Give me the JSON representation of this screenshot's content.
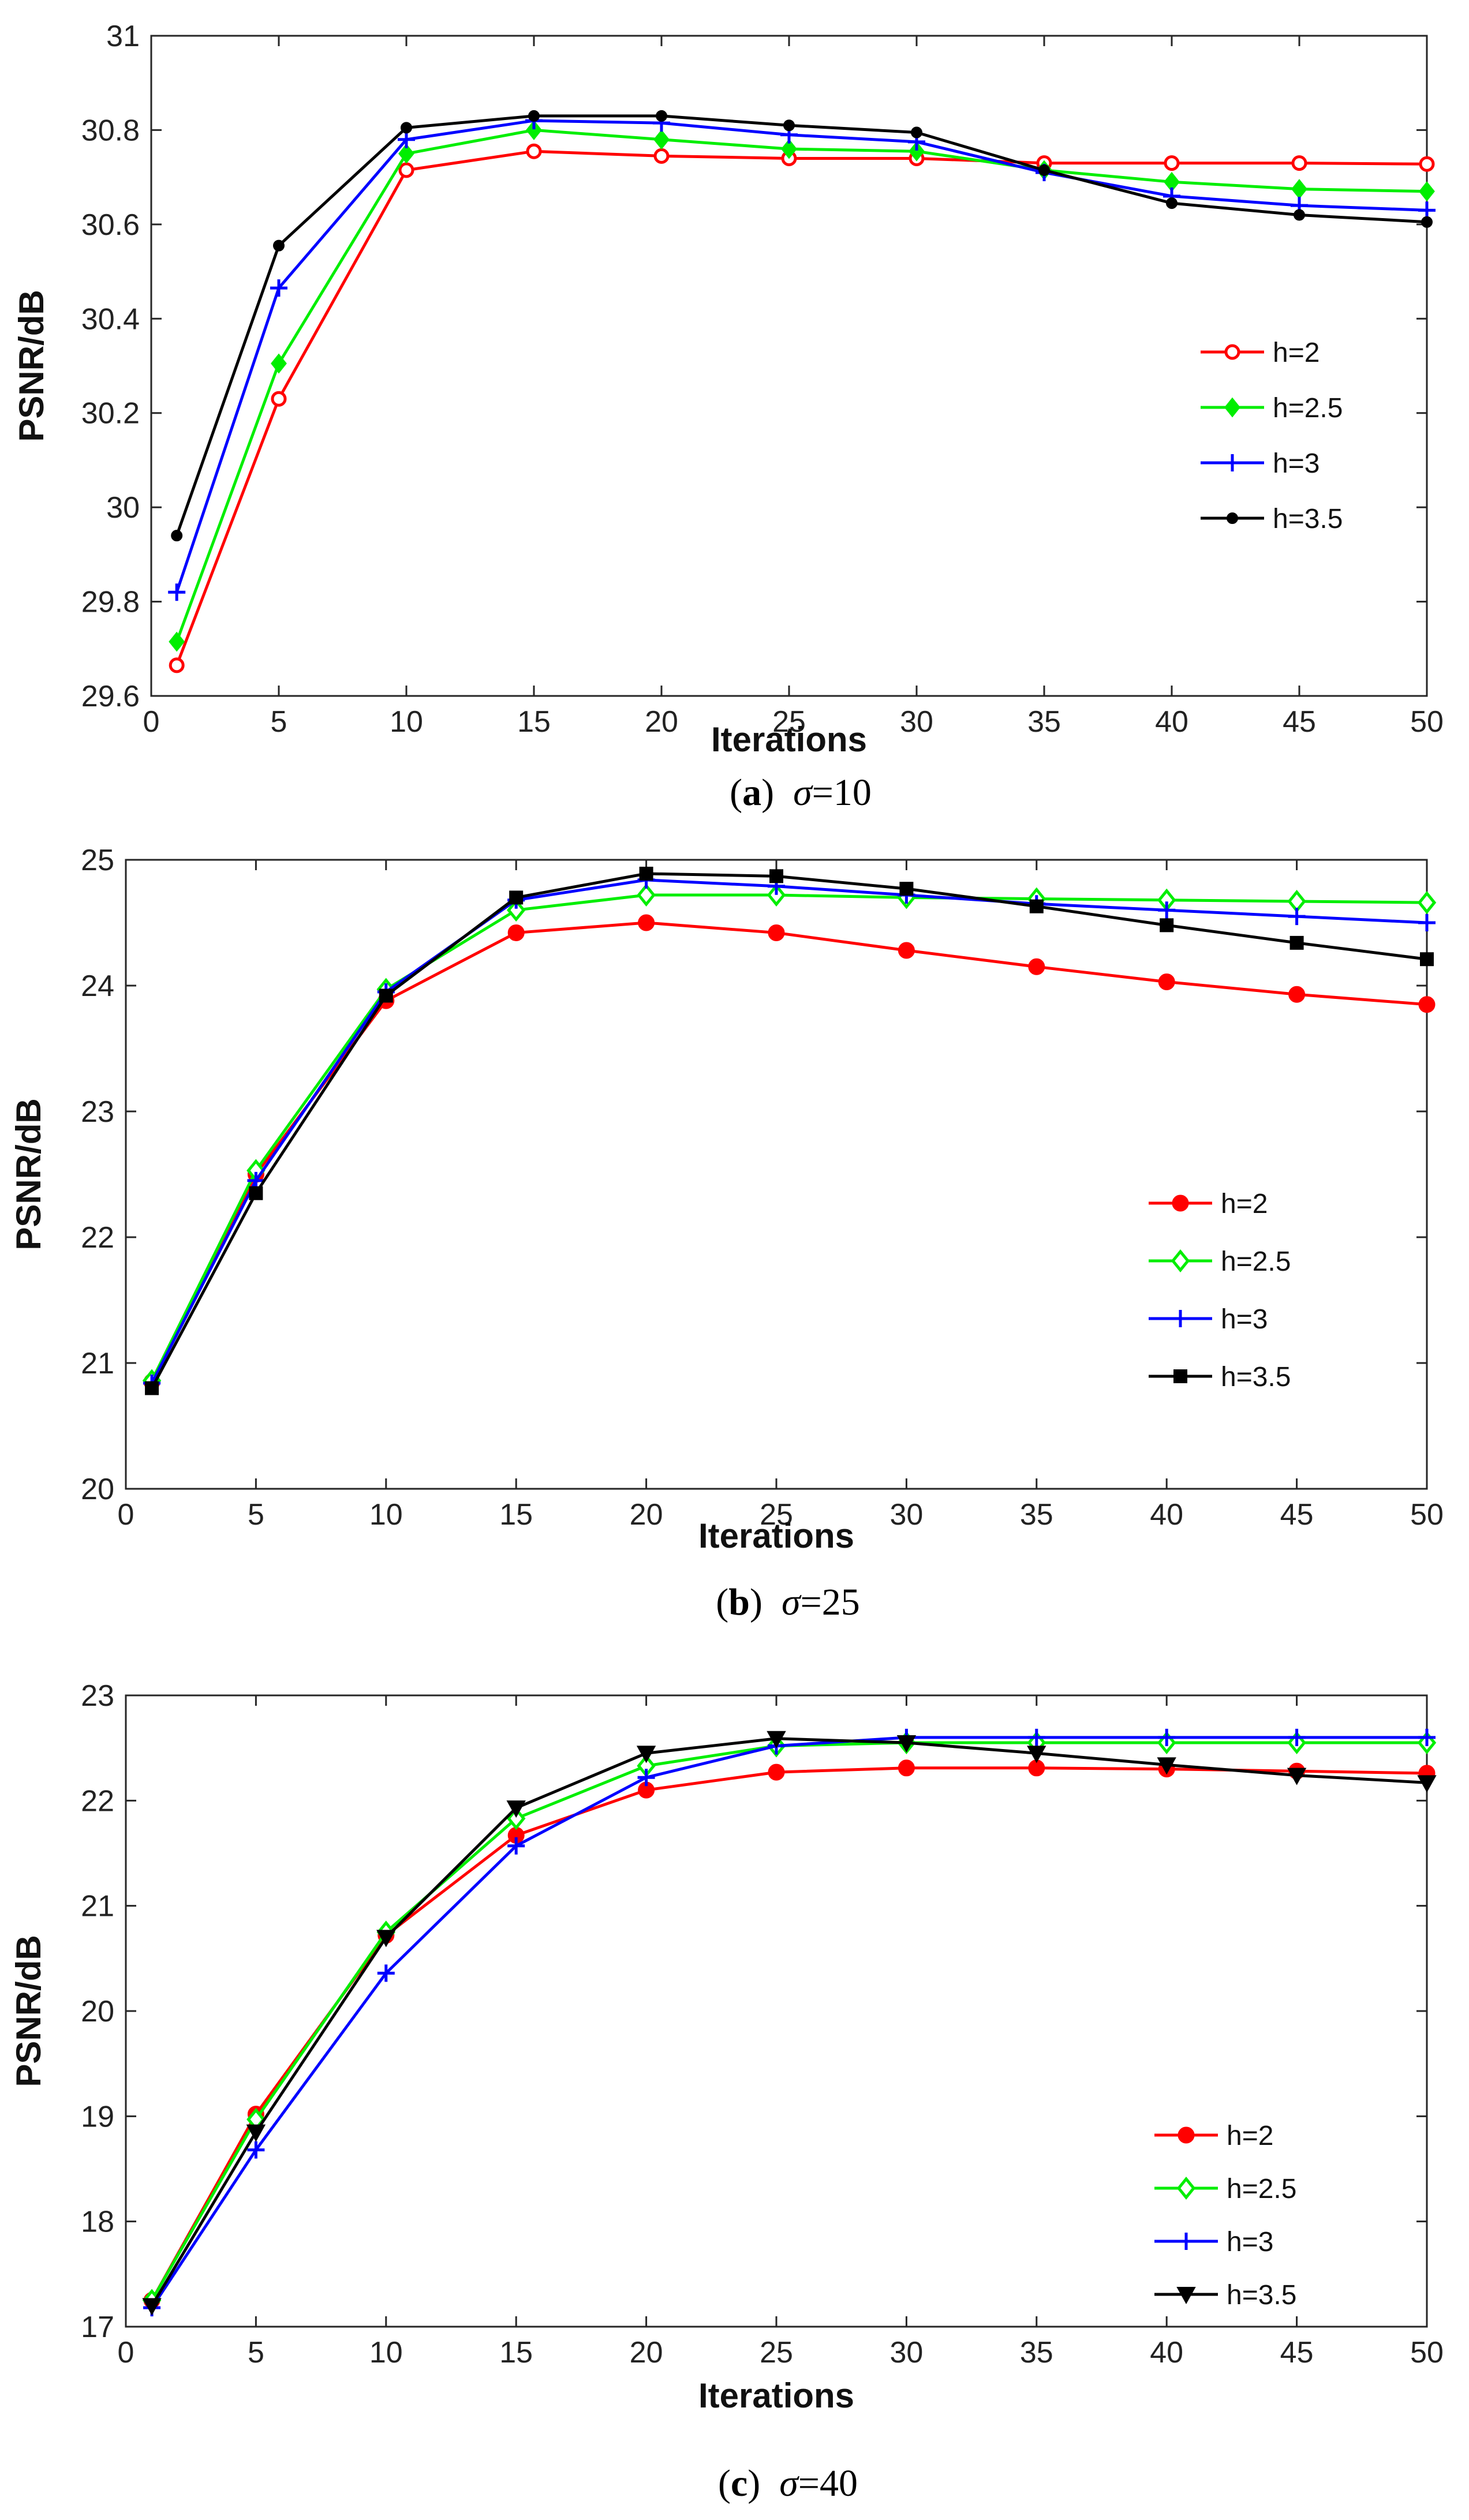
{
  "chart_data": [
    {
      "type": "line",
      "panel_id": "a",
      "caption": {
        "letter": "a",
        "sigma": "σ",
        "value": "=10"
      },
      "xlabel": "Iterations",
      "ylabel": "PSNR/dB",
      "xlim": [
        0,
        50
      ],
      "ylim": [
        29.6,
        31
      ],
      "xticks": [
        0,
        5,
        10,
        15,
        20,
        25,
        30,
        35,
        40,
        45,
        50
      ],
      "yticks": [
        29.6,
        29.8,
        30,
        30.2,
        30.4,
        30.6,
        30.8,
        31
      ],
      "ytick_labels": [
        "29.6",
        "29.8",
        "30",
        "30.2",
        "30.4",
        "30.6",
        "30.8",
        "31"
      ],
      "legend_position": "right-middle",
      "x": [
        1,
        5,
        10,
        15,
        20,
        25,
        30,
        35,
        40,
        45,
        50
      ],
      "series": [
        {
          "name": "h=2",
          "color": "#ff0000",
          "marker": "circle-open",
          "values": [
            29.665,
            30.23,
            30.715,
            30.755,
            30.745,
            30.74,
            30.74,
            30.73,
            30.73,
            30.73,
            30.728
          ]
        },
        {
          "name": "h=2.5",
          "color": "#00ee00",
          "marker": "diamond-filled",
          "values": [
            29.715,
            30.305,
            30.75,
            30.8,
            30.78,
            30.76,
            30.755,
            30.715,
            30.69,
            30.675,
            30.67
          ]
        },
        {
          "name": "h=3",
          "color": "#0000ff",
          "marker": "plus",
          "values": [
            29.82,
            30.465,
            30.78,
            30.82,
            30.815,
            30.79,
            30.775,
            30.71,
            30.66,
            30.64,
            30.63
          ]
        },
        {
          "name": "h=3.5",
          "color": "#000000",
          "marker": "dot",
          "values": [
            29.94,
            30.555,
            30.805,
            30.83,
            30.83,
            30.81,
            30.795,
            30.715,
            30.645,
            30.62,
            30.605
          ]
        }
      ]
    },
    {
      "type": "line",
      "panel_id": "b",
      "caption": {
        "letter": "b",
        "sigma": "σ",
        "value": "=25"
      },
      "xlabel": "Iterations",
      "ylabel": "PSNR/dB",
      "xlim": [
        0,
        50
      ],
      "ylim": [
        20,
        25
      ],
      "xticks": [
        0,
        5,
        10,
        15,
        20,
        25,
        30,
        35,
        40,
        45,
        50
      ],
      "yticks": [
        20,
        21,
        22,
        23,
        24,
        25
      ],
      "ytick_labels": [
        "20",
        "21",
        "22",
        "23",
        "24",
        "25"
      ],
      "legend_position": "right-middle",
      "x": [
        1,
        5,
        10,
        15,
        20,
        25,
        30,
        35,
        40,
        45,
        50
      ],
      "series": [
        {
          "name": "h=2",
          "color": "#ff0000",
          "marker": "circle-filled",
          "values": [
            20.85,
            22.5,
            23.88,
            24.42,
            24.5,
            24.42,
            24.28,
            24.15,
            24.03,
            23.93,
            23.85
          ]
        },
        {
          "name": "h=2.5",
          "color": "#00ee00",
          "marker": "diamond-open",
          "values": [
            20.86,
            22.53,
            23.97,
            24.6,
            24.72,
            24.72,
            24.7,
            24.69,
            24.68,
            24.67,
            24.66
          ]
        },
        {
          "name": "h=3",
          "color": "#0000ff",
          "marker": "plus",
          "values": [
            20.84,
            22.45,
            23.95,
            24.68,
            24.84,
            24.79,
            24.72,
            24.65,
            24.6,
            24.55,
            24.5
          ]
        },
        {
          "name": "h=3.5",
          "color": "#000000",
          "marker": "square-filled",
          "values": [
            20.8,
            22.35,
            23.92,
            24.7,
            24.89,
            24.87,
            24.77,
            24.63,
            24.48,
            24.34,
            24.21
          ]
        }
      ]
    },
    {
      "type": "line",
      "panel_id": "c",
      "caption": {
        "letter": "c",
        "sigma": "σ",
        "value": "=40"
      },
      "xlabel": "Iterations",
      "ylabel": "PSNR/dB",
      "xlim": [
        0,
        50
      ],
      "ylim": [
        17,
        23
      ],
      "xticks": [
        0,
        5,
        10,
        15,
        20,
        25,
        30,
        35,
        40,
        45,
        50
      ],
      "yticks": [
        17,
        18,
        19,
        20,
        21,
        22,
        23
      ],
      "ytick_labels": [
        "17",
        "18",
        "19",
        "20",
        "21",
        "22",
        "23"
      ],
      "legend_position": "right-bottom",
      "x": [
        1,
        5,
        10,
        15,
        20,
        25,
        30,
        35,
        40,
        45,
        50
      ],
      "series": [
        {
          "name": "h=2",
          "color": "#ff0000",
          "marker": "circle-filled",
          "values": [
            17.25,
            19.02,
            20.72,
            21.67,
            22.1,
            22.27,
            22.31,
            22.31,
            22.3,
            22.28,
            22.26
          ]
        },
        {
          "name": "h=2.5",
          "color": "#00ee00",
          "marker": "diamond-open",
          "values": [
            17.25,
            18.97,
            20.75,
            21.83,
            22.33,
            22.52,
            22.55,
            22.55,
            22.55,
            22.55,
            22.55
          ]
        },
        {
          "name": "h=3",
          "color": "#0000ff",
          "marker": "plus",
          "values": [
            17.18,
            18.68,
            20.36,
            21.57,
            22.22,
            22.52,
            22.6,
            22.6,
            22.6,
            22.6,
            22.6
          ]
        },
        {
          "name": "h=3.5",
          "color": "#000000",
          "marker": "triangle-down-filled",
          "values": [
            17.2,
            18.85,
            20.7,
            21.93,
            22.45,
            22.59,
            22.55,
            22.45,
            22.34,
            22.24,
            22.17
          ]
        }
      ]
    }
  ]
}
